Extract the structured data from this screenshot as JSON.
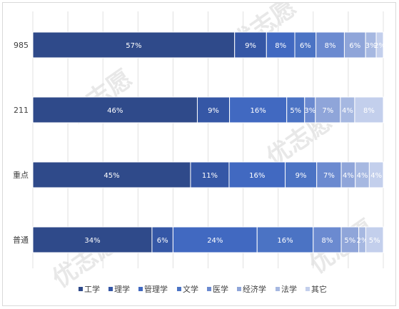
{
  "chart_data": {
    "type": "bar",
    "orientation": "horizontal",
    "stacked": "percent",
    "categories": [
      "985",
      "211",
      "重点",
      "普通"
    ],
    "series": [
      {
        "name": "工学",
        "values": [
          57,
          46,
          45,
          34
        ],
        "labels": [
          "57%",
          "46%",
          "45%",
          "34%"
        ],
        "color": "#2f4a8a"
      },
      {
        "name": "理学",
        "values": [
          9,
          9,
          11,
          6
        ],
        "labels": [
          "9%",
          "9%",
          "11%",
          "6%"
        ],
        "color": "#3557a6"
      },
      {
        "name": "管理学",
        "values": [
          8,
          16,
          16,
          24
        ],
        "labels": [
          "8%",
          "16%",
          "16%",
          "24%"
        ],
        "color": "#4169c1"
      },
      {
        "name": "文学",
        "values": [
          6,
          5,
          9,
          16
        ],
        "labels": [
          "6%",
          "5%",
          "9%",
          "16%"
        ],
        "color": "#4b73c4"
      },
      {
        "name": "医学",
        "values": [
          8,
          3,
          7,
          8
        ],
        "labels": [
          "8%",
          "3%",
          "7%",
          "8%"
        ],
        "color": "#6b8ad0"
      },
      {
        "name": "经济学",
        "values": [
          6,
          7,
          4,
          5
        ],
        "labels": [
          "6%",
          "7%",
          "4%",
          "5%"
        ],
        "color": "#8fa5d9"
      },
      {
        "name": "法学",
        "values": [
          3,
          4,
          4,
          2
        ],
        "labels": [
          "3%",
          "4%",
          "4%",
          "2%"
        ],
        "color": "#a6b8e1"
      },
      {
        "name": "其它",
        "values": [
          2,
          8,
          4,
          5
        ],
        "labels": [
          "2%",
          "8%",
          "4%",
          "5%"
        ],
        "color": "#c3cfec"
      }
    ],
    "xlim": [
      0,
      100
    ],
    "grid": true,
    "legend": "bottom"
  },
  "watermark": "优志愿"
}
